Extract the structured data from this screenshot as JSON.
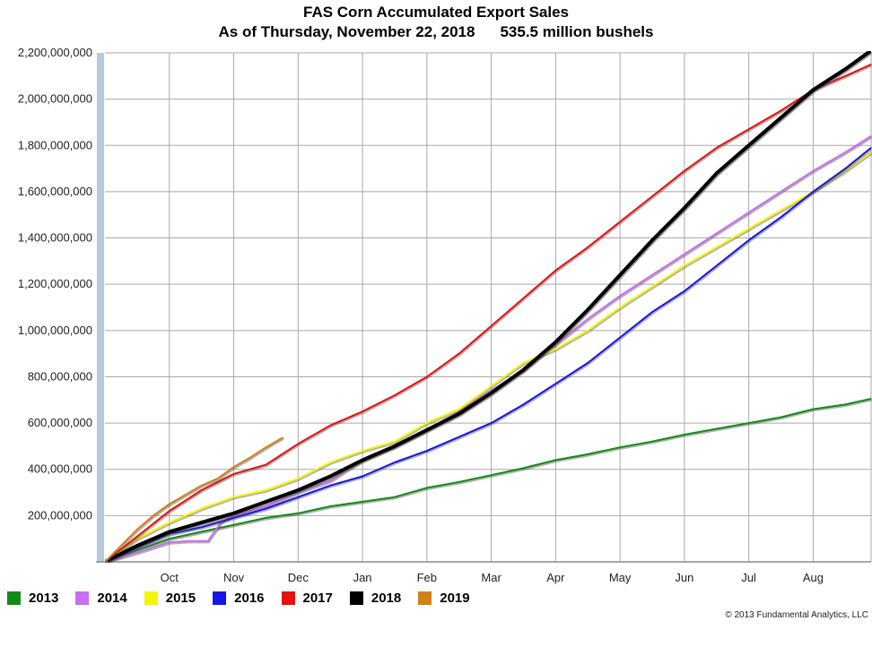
{
  "chart_data": {
    "type": "line",
    "title": "FAS Corn Accumulated Export Sales",
    "subtitle_date": "As of Thursday, November 22, 2018",
    "subtitle_value": "535.5 million bushels",
    "x_tick_labels": [
      "Oct",
      "Nov",
      "Dec",
      "Jan",
      "Feb",
      "Mar",
      "Apr",
      "May",
      "Jun",
      "Jul",
      "Aug"
    ],
    "x_tick_positions": [
      1,
      2,
      3,
      4,
      5,
      6,
      7,
      8,
      9,
      10,
      11
    ],
    "xlim": [
      0,
      11.9
    ],
    "ylim": [
      0,
      2200000000
    ],
    "y_ticks": [
      200000000,
      400000000,
      600000000,
      800000000,
      1000000000,
      1200000000,
      1400000000,
      1600000000,
      1800000000,
      2000000000,
      2200000000
    ],
    "y_tick_labels": [
      "200,000,000",
      "400,000,000",
      "600,000,000",
      "800,000,000",
      "1,000,000,000",
      "1,200,000,000",
      "1,400,000,000",
      "1,600,000,000",
      "1,800,000,000",
      "2,000,000,000",
      "2,200,000,000"
    ],
    "grid": true,
    "legend_position": "bottom",
    "series": [
      {
        "name": "2013",
        "color": "#138a13",
        "x": [
          0,
          0.5,
          1,
          1.5,
          2,
          2.5,
          3,
          3.5,
          4,
          4.5,
          5,
          5.5,
          6,
          6.5,
          7,
          7.5,
          8,
          8.5,
          9,
          9.5,
          10,
          10.5,
          11,
          11.5,
          11.9
        ],
        "y": [
          0,
          50000000,
          100000000,
          130000000,
          160000000,
          190000000,
          210000000,
          240000000,
          260000000,
          280000000,
          320000000,
          345000000,
          375000000,
          405000000,
          440000000,
          465000000,
          495000000,
          520000000,
          550000000,
          575000000,
          600000000,
          625000000,
          660000000,
          680000000,
          705000000
        ]
      },
      {
        "name": "2014",
        "color": "#c86ef0",
        "x": [
          0,
          0.5,
          1,
          1.3,
          1.6,
          1.8,
          2,
          2.5,
          3,
          3.5,
          4,
          4.5,
          5,
          5.5,
          6,
          6.5,
          7,
          7.5,
          8,
          8.5,
          9,
          9.5,
          10,
          10.5,
          11,
          11.5,
          11.9
        ],
        "y": [
          0,
          40000000,
          85000000,
          90000000,
          90000000,
          170000000,
          200000000,
          240000000,
          300000000,
          350000000,
          440000000,
          500000000,
          570000000,
          650000000,
          740000000,
          830000000,
          940000000,
          1050000000,
          1150000000,
          1240000000,
          1330000000,
          1420000000,
          1510000000,
          1600000000,
          1690000000,
          1770000000,
          1840000000
        ]
      },
      {
        "name": "2015",
        "color": "#f5f500",
        "x": [
          0,
          0.5,
          1,
          1.5,
          2,
          2.5,
          3,
          3.5,
          4,
          4.5,
          5,
          5.5,
          6,
          6.5,
          7,
          7.5,
          8,
          8.5,
          9,
          9.5,
          10,
          10.5,
          11,
          11.5,
          11.9
        ],
        "y": [
          0,
          100000000,
          170000000,
          230000000,
          280000000,
          310000000,
          360000000,
          430000000,
          480000000,
          520000000,
          600000000,
          660000000,
          760000000,
          860000000,
          920000000,
          1000000000,
          1100000000,
          1190000000,
          1280000000,
          1360000000,
          1440000000,
          1520000000,
          1600000000,
          1690000000,
          1770000000
        ]
      },
      {
        "name": "2016",
        "color": "#1515e6",
        "x": [
          0,
          0.5,
          1,
          1.5,
          2,
          2.5,
          3,
          3.5,
          4,
          4.5,
          5,
          5.5,
          6,
          6.5,
          7,
          7.5,
          8,
          8.5,
          9,
          9.5,
          10,
          10.5,
          11,
          11.5,
          11.9
        ],
        "y": [
          0,
          60000000,
          120000000,
          150000000,
          190000000,
          230000000,
          280000000,
          330000000,
          370000000,
          430000000,
          480000000,
          540000000,
          600000000,
          680000000,
          770000000,
          860000000,
          970000000,
          1080000000,
          1170000000,
          1280000000,
          1390000000,
          1490000000,
          1600000000,
          1700000000,
          1790000000
        ]
      },
      {
        "name": "2017",
        "color": "#e81010",
        "x": [
          0,
          0.5,
          1,
          1.5,
          2,
          2.5,
          3,
          3.5,
          4,
          4.5,
          5,
          5.5,
          6,
          6.5,
          7,
          7.5,
          8,
          8.5,
          9,
          9.5,
          10,
          10.5,
          11,
          11.5,
          11.9
        ],
        "y": [
          0,
          110000000,
          220000000,
          310000000,
          380000000,
          420000000,
          510000000,
          590000000,
          650000000,
          720000000,
          800000000,
          900000000,
          1020000000,
          1140000000,
          1260000000,
          1360000000,
          1470000000,
          1580000000,
          1690000000,
          1790000000,
          1870000000,
          1950000000,
          2040000000,
          2100000000,
          2150000000
        ]
      },
      {
        "name": "2018",
        "color": "#000000",
        "x": [
          0,
          0.5,
          1,
          1.5,
          2,
          2.5,
          3,
          3.5,
          4,
          4.5,
          5,
          5.5,
          6,
          6.5,
          7,
          7.5,
          8,
          8.5,
          9,
          9.5,
          10,
          10.5,
          11,
          11.5,
          11.9
        ],
        "y": [
          0,
          70000000,
          130000000,
          170000000,
          210000000,
          260000000,
          310000000,
          370000000,
          440000000,
          500000000,
          570000000,
          640000000,
          730000000,
          830000000,
          950000000,
          1090000000,
          1240000000,
          1390000000,
          1530000000,
          1680000000,
          1800000000,
          1920000000,
          2040000000,
          2130000000,
          2210000000
        ]
      },
      {
        "name": "2019",
        "color": "#d4801a",
        "x": [
          0,
          0.25,
          0.5,
          0.75,
          1,
          1.25,
          1.5,
          1.75,
          2,
          2.25,
          2.5,
          2.75
        ],
        "y": [
          0,
          70000000,
          140000000,
          200000000,
          250000000,
          290000000,
          330000000,
          360000000,
          410000000,
          450000000,
          495000000,
          535500000
        ]
      }
    ]
  },
  "copyright": "© 2013 Fundamental Analytics, LLC"
}
